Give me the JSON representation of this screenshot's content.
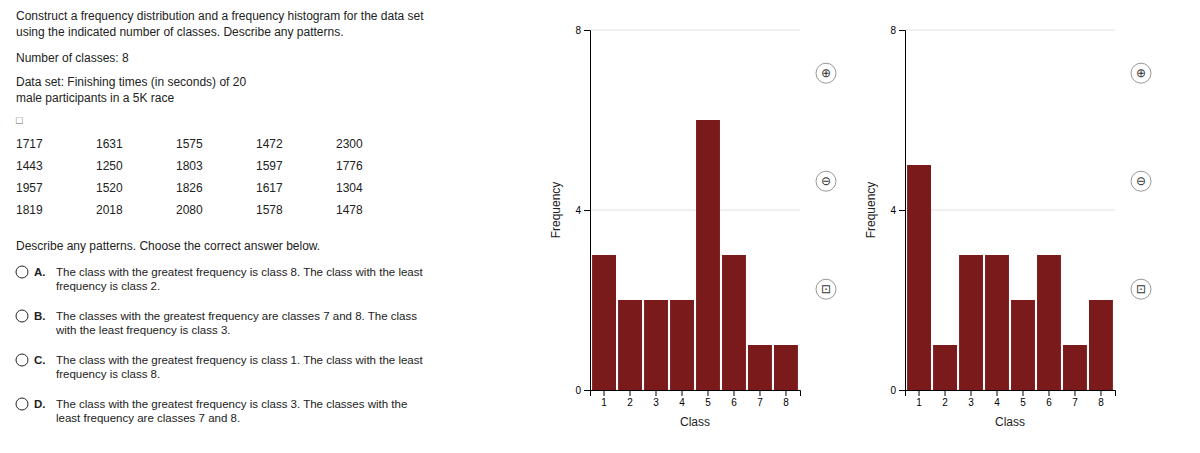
{
  "title": "Construct a frequency distribution and a frequency histogram for the data set",
  "subtitle": "using the indicated number of classes. Describe any patterns.",
  "annotations": [
    "Number of classes: 8",
    "Data set: Finishing times (in seconds) of 20",
    "male participants in a 5K race"
  ],
  "copy_icon": "□",
  "data_table": [
    [
      1717,
      1631,
      1575,
      1472,
      2300
    ],
    [
      1443,
      1250,
      1803,
      1597,
      1776
    ],
    [
      1957,
      1520,
      1826,
      1617,
      1304
    ],
    [
      1819,
      2018,
      2080,
      1578,
      1478
    ]
  ],
  "icons": [
    "⊕",
    "⊖",
    "⊡"
  ],
  "question": "Describe any patterns. Choose the correct answer below.",
  "options": [
    {
      "letter": "A.",
      "text": "The class with the greatest frequency is class 8. The class with the least\nfrequency is class 2."
    },
    {
      "letter": "B.",
      "text": "The classes with the greatest frequency are classes 7 and 8. The class\nwith the least frequency is class 3."
    },
    {
      "letter": "C.",
      "text": "The class with the greatest frequency is class 1. The class with the least\nfrequency is class 8."
    },
    {
      "letter": "D.",
      "text": "The class with the greatest frequency is class 3. The classes with the\nleast frequency are classes 7 and 8."
    }
  ],
  "chart_data": [
    {
      "type": "bar",
      "categories": [
        1,
        2,
        3,
        4,
        5,
        6,
        7,
        8
      ],
      "values": [
        3,
        2,
        2,
        2,
        6,
        3,
        1,
        1
      ],
      "color": "#7b1a1a",
      "xlabel": "Class",
      "ylabel": "Frequency",
      "ylim": [
        0,
        8
      ],
      "yticks": [
        0,
        4,
        8
      ],
      "grid": true
    },
    {
      "type": "bar",
      "categories": [
        1,
        2,
        3,
        4,
        5,
        6,
        7,
        8
      ],
      "values": [
        5,
        1,
        3,
        3,
        2,
        3,
        1,
        2
      ],
      "color": "#7b1a1a",
      "xlabel": "Class",
      "ylabel": "Frequency",
      "ylim": [
        0,
        8
      ],
      "yticks": [
        0,
        4,
        8
      ],
      "grid": true
    }
  ]
}
